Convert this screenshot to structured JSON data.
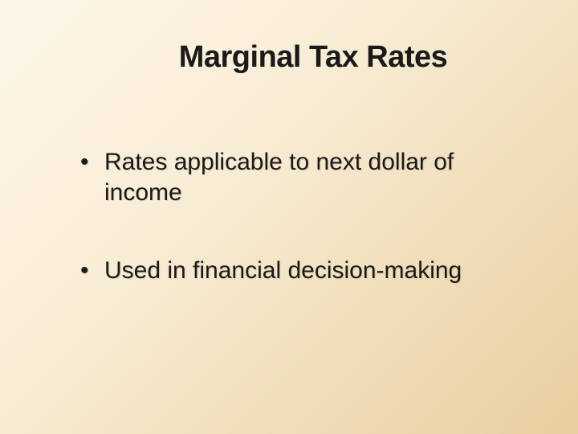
{
  "slide": {
    "title": "Marginal Tax Rates",
    "bullets": [
      "Rates applicable to next dollar of income",
      "Used in financial decision-making"
    ],
    "background_gradient": {
      "start": "#fdf6e8",
      "mid1": "#f8ecd4",
      "mid2": "#f0ddb8",
      "end": "#e8cfa0"
    },
    "title_color": "#1a1a1a",
    "title_fontsize": 38,
    "bullet_color": "#1a1a1a",
    "bullet_fontsize": 30
  }
}
